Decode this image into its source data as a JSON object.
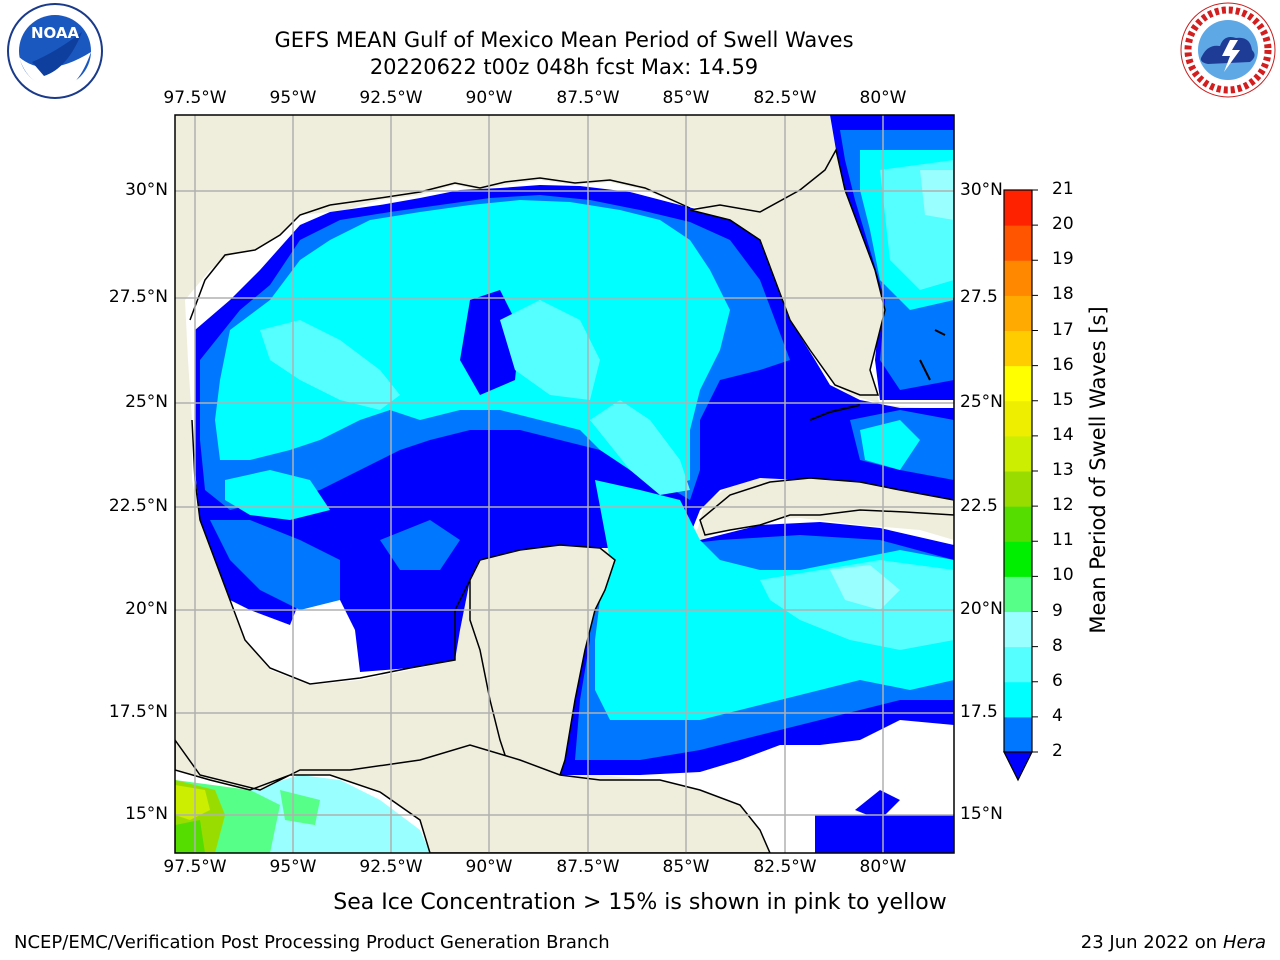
{
  "header": {
    "title_line1": "GEFS MEAN Gulf of Mexico Mean Period of Swell Waves",
    "title_line2": "20220622 t00z 048h fcst   Max: 14.59"
  },
  "logos": {
    "left": {
      "name": "noaa-logo",
      "text": "NOAA"
    },
    "right": {
      "name": "national-weather-service-logo",
      "text": "NATIONAL WEATHER SERVICE"
    }
  },
  "map": {
    "x_ticks": [
      "97.5°W",
      "95°W",
      "92.5°W",
      "90°W",
      "87.5°W",
      "85°W",
      "82.5°W",
      "80°W"
    ],
    "y_ticks_left": [
      "30°N",
      "27.5°N",
      "25°N",
      "22.5°N",
      "20°N",
      "17.5°N",
      "15°N"
    ],
    "y_ticks_right": [
      "30°N",
      "27.5",
      "25°N",
      "22.5",
      "20°N",
      "17.5",
      "15°N"
    ],
    "land_color": "#efeedd",
    "ocean_no_data_color": "#ffffff",
    "grid": true
  },
  "colorbar": {
    "label": "Mean Period of Swell Waves [s]",
    "ticks": [
      "2",
      "4",
      "6",
      "8",
      "9",
      "10",
      "11",
      "12",
      "13",
      "14",
      "15",
      "16",
      "17",
      "18",
      "19",
      "20",
      "21"
    ],
    "colors": [
      "#0000ff",
      "#0077ff",
      "#00ffff",
      "#55ffff",
      "#99ffff",
      "#55ff88",
      "#00ee00",
      "#55dd00",
      "#99dd00",
      "#ccee00",
      "#eeee00",
      "#ffff00",
      "#ffcc00",
      "#ffaa00",
      "#ff8800",
      "#ff5500",
      "#ff2200",
      "#ff0000"
    ],
    "extend": "min"
  },
  "note": "Sea Ice Concentration > 15% is shown in pink to yellow",
  "footer": {
    "left": "NCEP/EMC/Verification Post Processing Product Generation Branch",
    "right_date": "23 Jun 2022 on",
    "right_host": "Hera"
  }
}
